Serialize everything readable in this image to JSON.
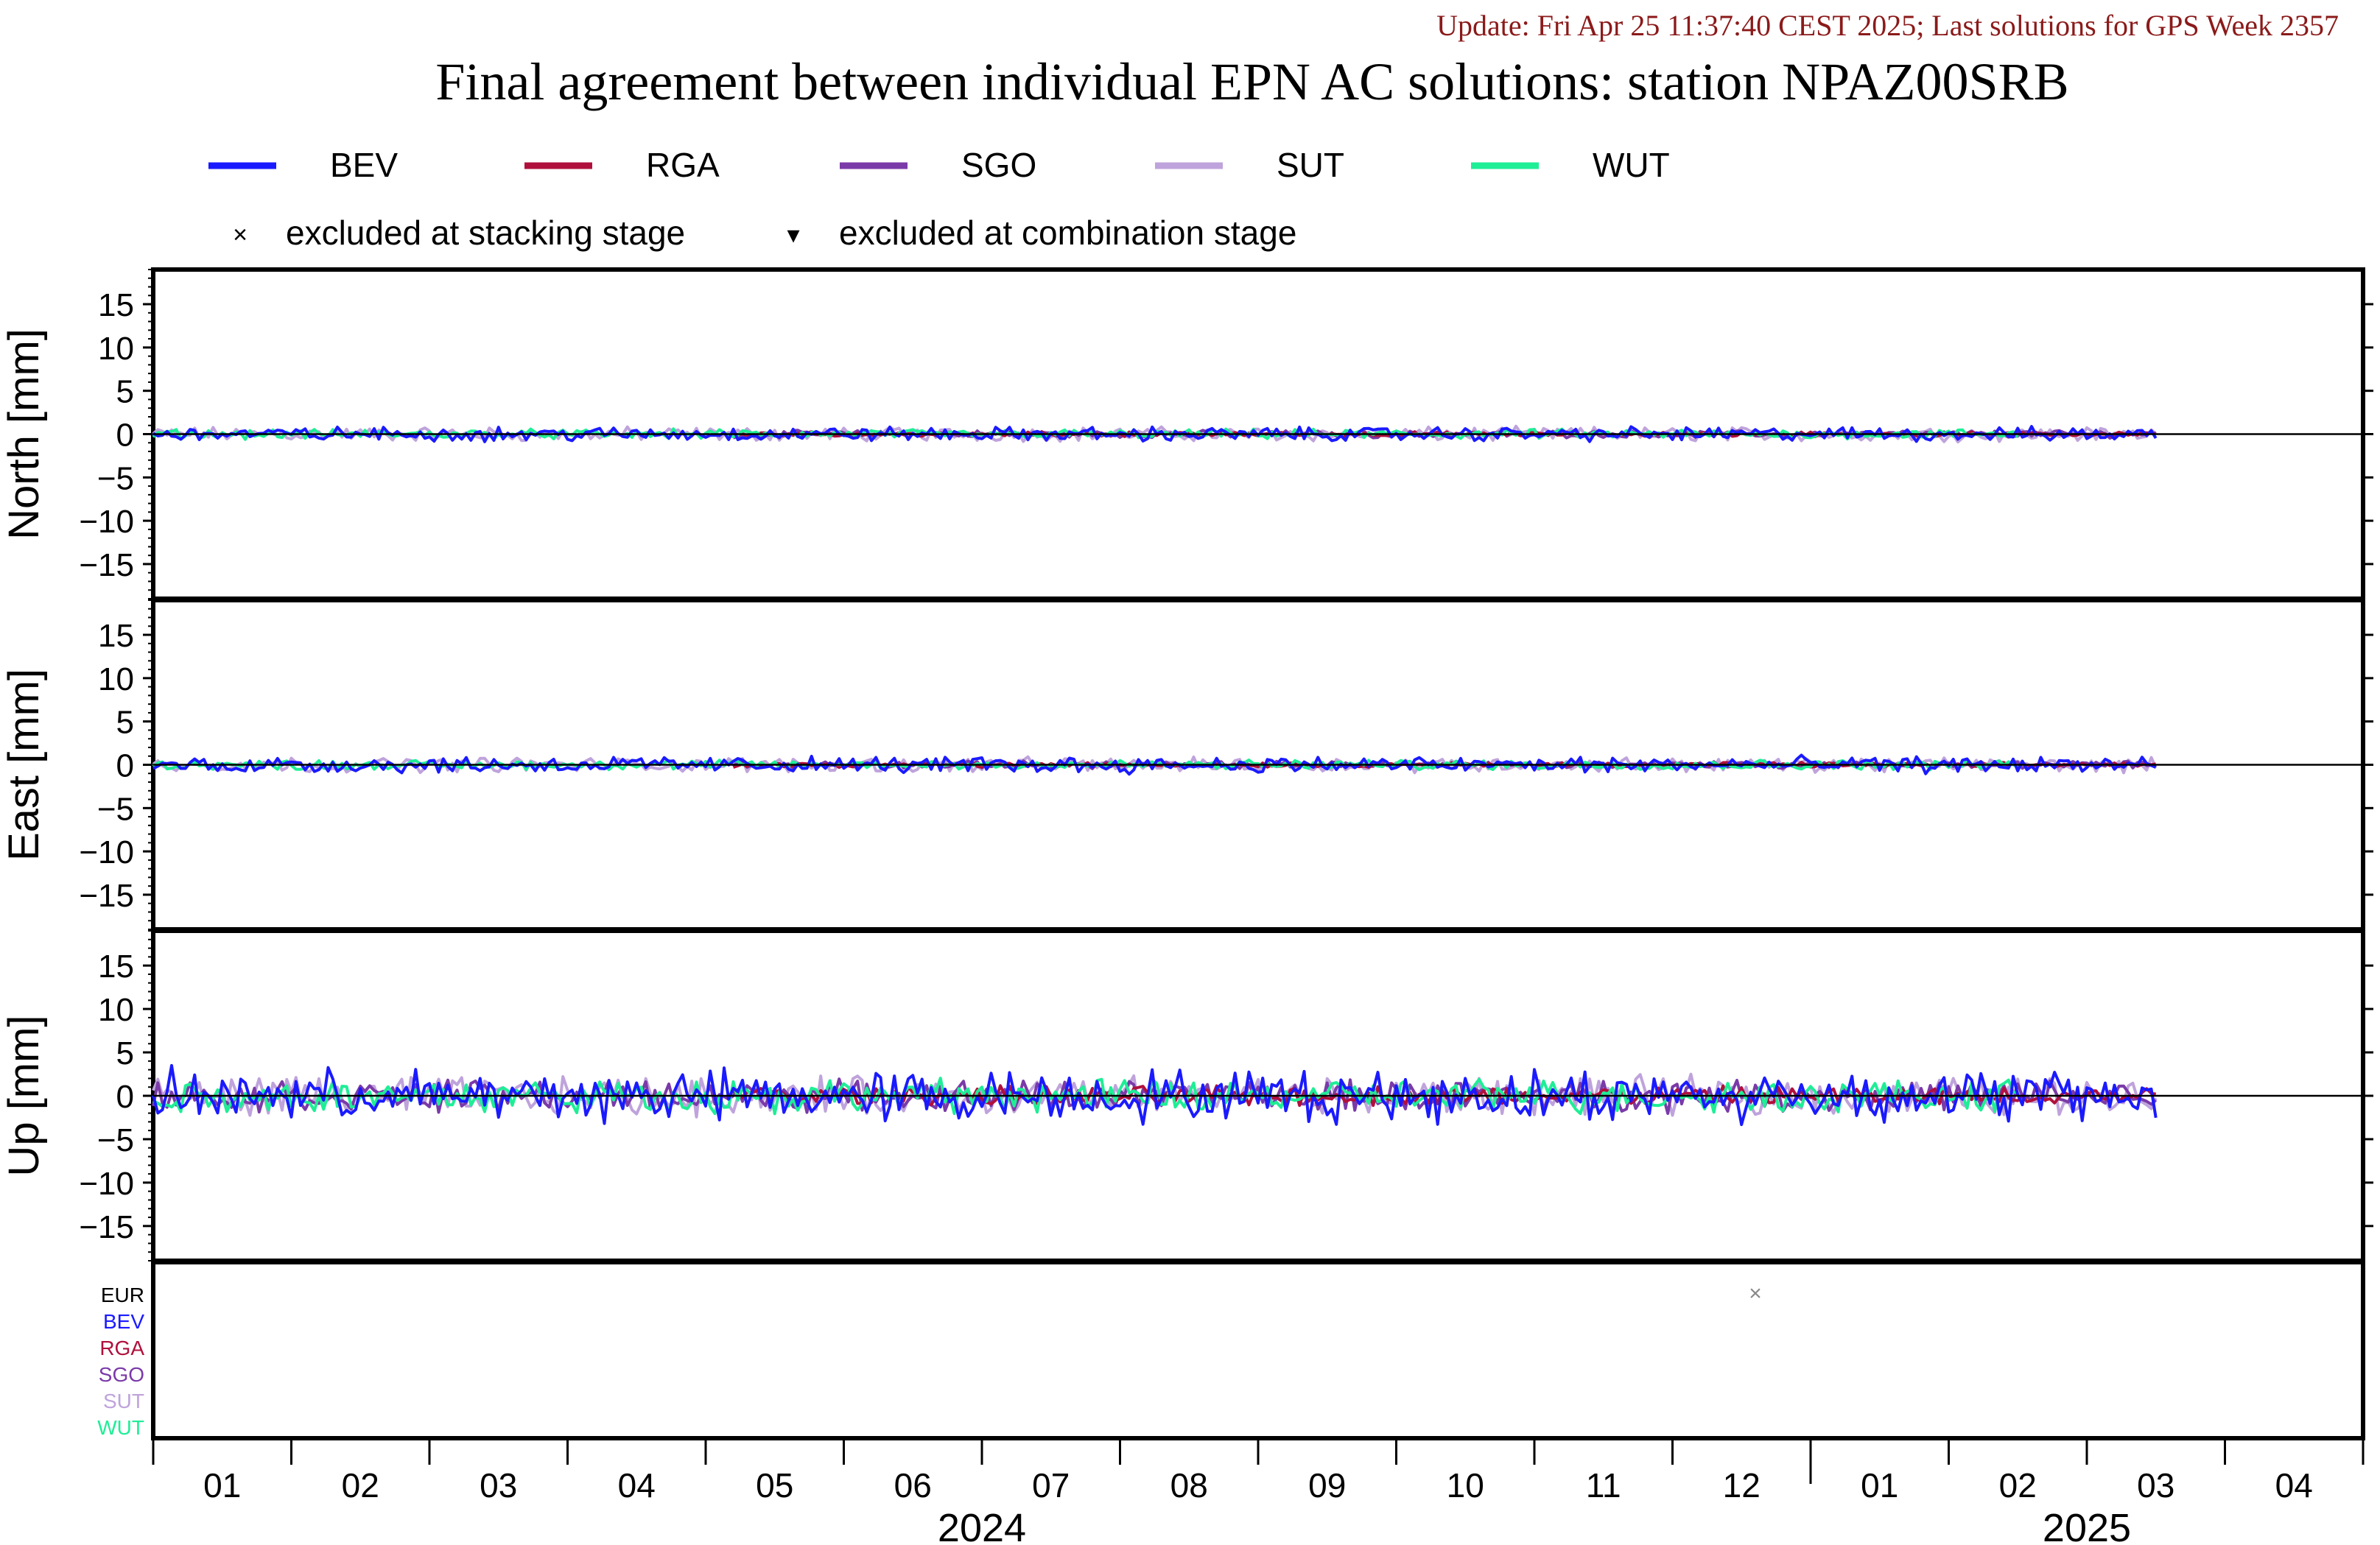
{
  "header": {
    "update_text": "Update: Fri Apr 25 11:37:40 CEST 2025; Last solutions for GPS Week 2357",
    "title": "Final agreement between individual EPN AC solutions: station NPAZ00SRB"
  },
  "legend": {
    "series": [
      {
        "name": "BEV",
        "color": "#1a1aff"
      },
      {
        "name": "RGA",
        "color": "#b0103c"
      },
      {
        "name": "SGO",
        "color": "#7a3aa8"
      },
      {
        "name": "SUT",
        "color": "#bfa3dc"
      },
      {
        "name": "WUT",
        "color": "#1eee96"
      }
    ],
    "markers": [
      {
        "symbol": "×",
        "label": "excluded at stacking stage"
      },
      {
        "symbol": "▾",
        "label": "excluded at combination stage"
      }
    ]
  },
  "exclusion_panel": {
    "rows": [
      {
        "name": "EUR",
        "color": "#000000"
      },
      {
        "name": "BEV",
        "color": "#1a1aff"
      },
      {
        "name": "RGA",
        "color": "#b0103c"
      },
      {
        "name": "SGO",
        "color": "#7a3aa8"
      },
      {
        "name": "SUT",
        "color": "#bfa3dc"
      },
      {
        "name": "WUT",
        "color": "#1eee96"
      }
    ],
    "marks": [
      {
        "row": "EUR",
        "symbol": "×",
        "month_pos": 11.6,
        "color": "#888888"
      }
    ]
  },
  "chart_data": {
    "type": "line",
    "x_unit": "month",
    "x_range": [
      "2024-01",
      "2025-04"
    ],
    "month_ticks": [
      "01",
      "02",
      "03",
      "04",
      "05",
      "06",
      "07",
      "08",
      "09",
      "10",
      "11",
      "12",
      "01",
      "02",
      "03",
      "04"
    ],
    "year_labels": [
      {
        "label": "2024",
        "center_month": 6.0
      },
      {
        "label": "2025",
        "center_month": 14.0
      }
    ],
    "panels": [
      {
        "ylabel": "North [mm]",
        "ylim": [
          -19,
          19
        ],
        "yticks": [
          15,
          10,
          5,
          0,
          -5,
          -10,
          -15
        ],
        "series": [
          {
            "name": "BEV",
            "start": 0.0,
            "end": 14.5,
            "amplitude": 0.6
          },
          {
            "name": "RGA",
            "start": 4.2,
            "end": 14.5,
            "amplitude": 0.2
          },
          {
            "name": "SGO",
            "start": 4.2,
            "end": 14.5,
            "amplitude": 0.3
          },
          {
            "name": "SUT",
            "start": 0.0,
            "end": 14.5,
            "amplitude": 0.6
          },
          {
            "name": "WUT",
            "start": 0.0,
            "end": 13.5,
            "amplitude": 0.4
          }
        ]
      },
      {
        "ylabel": "East [mm]",
        "ylim": [
          -19,
          19
        ],
        "yticks": [
          15,
          10,
          5,
          0,
          -5,
          -10,
          -15
        ],
        "series": [
          {
            "name": "BEV",
            "start": 0.0,
            "end": 14.5,
            "amplitude": 0.7
          },
          {
            "name": "RGA",
            "start": 4.2,
            "end": 14.5,
            "amplitude": 0.2
          },
          {
            "name": "SGO",
            "start": 4.2,
            "end": 14.5,
            "amplitude": 0.3
          },
          {
            "name": "SUT",
            "start": 0.0,
            "end": 14.5,
            "amplitude": 0.6
          },
          {
            "name": "WUT",
            "start": 0.0,
            "end": 13.5,
            "amplitude": 0.4
          }
        ]
      },
      {
        "ylabel": "Up [mm]",
        "ylim": [
          -19,
          19
        ],
        "yticks": [
          15,
          10,
          5,
          0,
          -5,
          -10,
          -15
        ],
        "series": [
          {
            "name": "BEV",
            "start": 0.0,
            "end": 14.5,
            "amplitude": 2.2
          },
          {
            "name": "RGA",
            "start": 4.2,
            "end": 14.5,
            "amplitude": 0.8
          },
          {
            "name": "SGO",
            "start": 0.0,
            "end": 14.5,
            "amplitude": 1.3
          },
          {
            "name": "SUT",
            "start": 0.0,
            "end": 14.5,
            "amplitude": 1.6
          },
          {
            "name": "WUT",
            "start": 0.0,
            "end": 13.5,
            "amplitude": 1.4
          }
        ]
      }
    ]
  }
}
